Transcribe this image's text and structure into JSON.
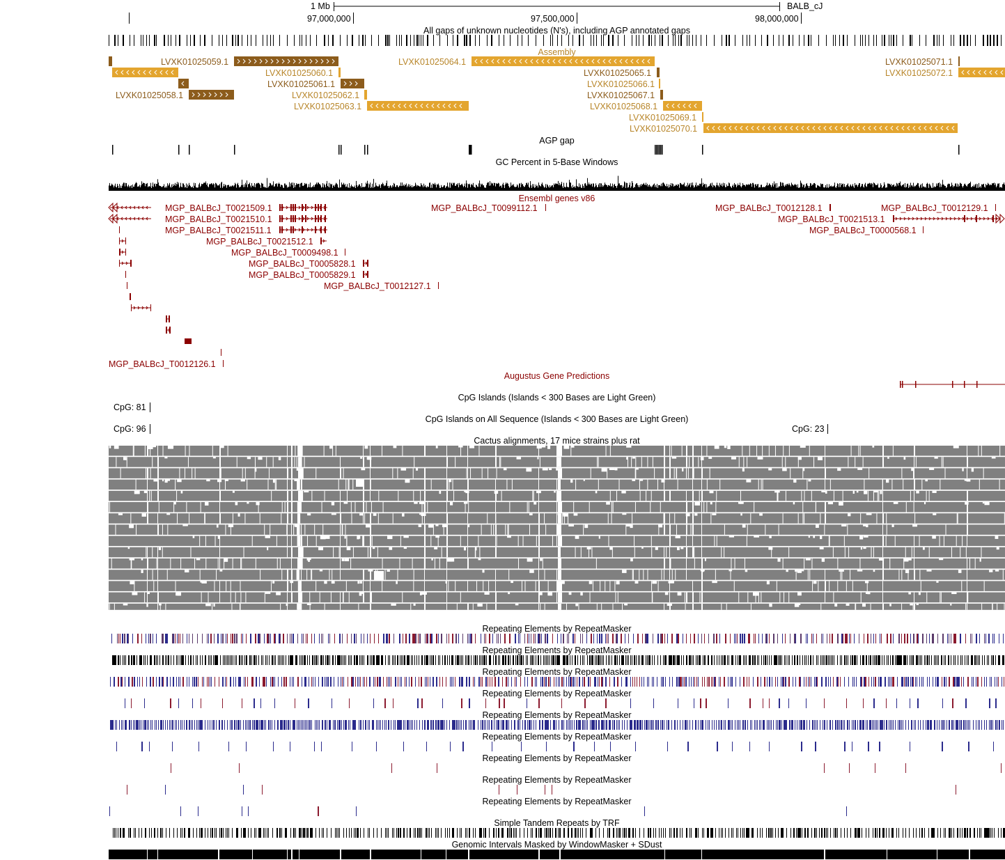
{
  "ruler": {
    "scale_label": "1 Mb",
    "assembly_label": "BALB_cJ",
    "ticks": [
      "97,000,000",
      "97,500,000",
      "98,000,000"
    ]
  },
  "tracks": {
    "gaps_unknown": "All gaps of unknown nucleotides (N's), including AGP annotated gaps",
    "assembly": "Assembly",
    "agp_gap": "AGP gap",
    "gc_percent": "GC Percent in 5-Base Windows",
    "ensembl": "Ensembl genes v86",
    "augustus": "Augustus Gene Predictions",
    "cpg": "CpG Islands (Islands < 300 Bases are Light Green)",
    "cpg_all": "CpG Islands on All Sequence (Islands < 300 Bases are Light Green)",
    "cactus": "Cactus alignments, 17 mice strains plus rat",
    "repeatmasker": [
      "Repeating Elements by RepeatMasker",
      "Repeating Elements by RepeatMasker",
      "Repeating Elements by RepeatMasker",
      "Repeating Elements by RepeatMasker",
      "Repeating Elements by RepeatMasker",
      "Repeating Elements by RepeatMasker",
      "Repeating Elements by RepeatMasker",
      "Repeating Elements by RepeatMasker",
      "Repeating Elements by RepeatMasker"
    ],
    "trf": "Simple Tandem Repeats by TRF",
    "windowmasker": "Genomic Intervals Masked by WindowMasker + SDust"
  },
  "assembly_items": [
    {
      "name": "LVXK01025059.1",
      "shade": "dark"
    },
    {
      "name": "LVXK01025064.1",
      "shade": "light"
    },
    {
      "name": "LVXK01025071.1",
      "shade": "dark"
    },
    {
      "name": "LVXK01025060.1",
      "shade": "light"
    },
    {
      "name": "LVXK01025065.1",
      "shade": "dark"
    },
    {
      "name": "LVXK01025072.1",
      "shade": "light"
    },
    {
      "name": "LVXK01025061.1",
      "shade": "dark"
    },
    {
      "name": "LVXK01025066.1",
      "shade": "light"
    },
    {
      "name": "LVXK01025058.1",
      "shade": "dark"
    },
    {
      "name": "LVXK01025062.1",
      "shade": "light"
    },
    {
      "name": "LVXK01025067.1",
      "shade": "dark"
    },
    {
      "name": "LVXK01025063.1",
      "shade": "light"
    },
    {
      "name": "LVXK01025068.1",
      "shade": "light"
    },
    {
      "name": "LVXK01025069.1",
      "shade": "light"
    },
    {
      "name": "LVXK01025070.1",
      "shade": "light"
    }
  ],
  "ensembl_items": [
    "MGP_BALBcJ_T0021509.1",
    "MGP_BALBcJ_T0099112.1",
    "MGP_BALBcJ_T0012128.1",
    "MGP_BALBcJ_T0012129.1",
    "MGP_BALBcJ_T0021510.1",
    "MGP_BALBcJ_T0021513.1",
    "MGP_BALBcJ_T0021511.1",
    "MGP_BALBcJ_T0000568.1",
    "MGP_BALBcJ_T0021512.1",
    "MGP_BALBcJ_T0009498.1",
    "MGP_BALBcJ_T0005828.1",
    "MGP_BALBcJ_T0005829.1",
    "MGP_BALBcJ_T0012127.1",
    "MGP_BALBcJ_T0012126.1"
  ],
  "cpg_items": [
    "CpG: 81",
    "CpG: 96",
    "CpG: 23"
  ],
  "colors": {
    "assembly_dark": "#8c5c1c",
    "assembly_light": "#e3a52f",
    "ensembl": "#8b0000",
    "cactus": "#808080",
    "repeat_red": "#8b1a2e",
    "repeat_blue": "#2a2a8c"
  }
}
